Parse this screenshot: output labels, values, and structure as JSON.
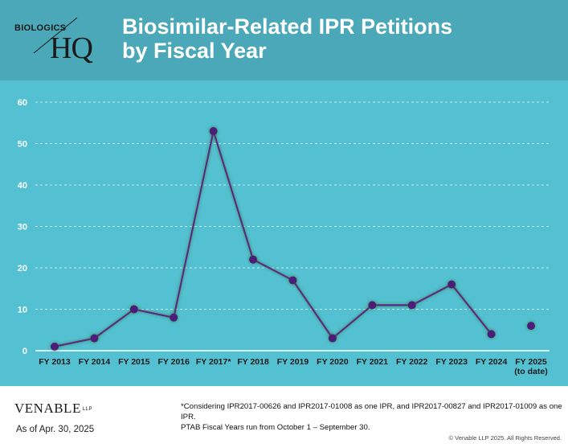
{
  "header": {
    "logo_top": "BIOLOGICS",
    "logo_bottom": "HQ",
    "title_line1": "Biosimilar-Related IPR Petitions",
    "title_line2": "by Fiscal Year"
  },
  "colors": {
    "header_bg": "#4aa8b8",
    "plot_bg": "#54c1d2",
    "line": "#5b2a86",
    "marker": "#4b1f78"
  },
  "chart_data": {
    "type": "line",
    "title": "Biosimilar-Related IPR Petitions by Fiscal Year",
    "xlabel": "",
    "ylabel": "",
    "categories": [
      "FY 2013",
      "FY 2014",
      "FY 2015",
      "FY 2016",
      "FY 2017*",
      "FY 2018",
      "FY 2019",
      "FY 2020",
      "FY 2021",
      "FY 2022",
      "FY 2023",
      "FY 2024",
      "FY 2025\n(to date)"
    ],
    "series": [
      {
        "values": [
          1,
          3,
          10,
          8,
          53,
          22,
          17,
          3,
          11,
          11,
          16,
          4,
          6
        ],
        "connected_through_index": 11
      }
    ],
    "ylim": [
      0,
      60
    ],
    "yticks": [
      0,
      10,
      20,
      30,
      40,
      50,
      60
    ],
    "grid": "horizontal dashed"
  },
  "footer": {
    "logo": "VENABLE",
    "logo_suffix": "LLP",
    "as_of": "As of Apr. 30, 2025",
    "footnote_line1": "*Considering IPR2017-00626 and IPR2017-01008 as one IPR, and IPR2017-00827 and IPR2017-01009 as one IPR.",
    "footnote_line2": "PTAB Fiscal Years run from October 1 – September 30.",
    "copyright": "© Venable LLP 2025. All Rights Reserved."
  }
}
